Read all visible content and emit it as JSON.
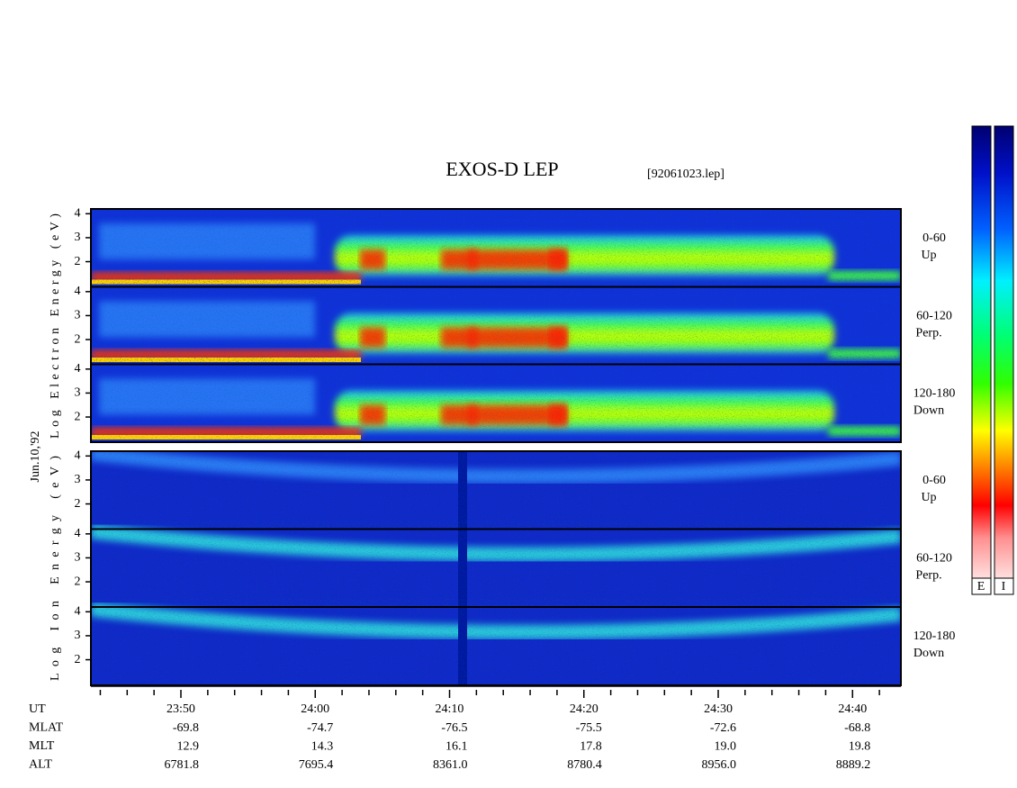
{
  "header": {
    "title": "EXOS-D LEP",
    "file": "[92061023.lep]"
  },
  "date": "Jun.10,'92",
  "ylim": [
    0.95,
    4.2
  ],
  "yticks": [
    2,
    3,
    4
  ],
  "electron": {
    "ylabel": "Log Electron Energy (eV)",
    "panels": [
      {
        "angle": "0-60",
        "dir": "Up"
      },
      {
        "angle": "60-120",
        "dir": "Perp."
      },
      {
        "angle": "120-180",
        "dir": "Down"
      }
    ]
  },
  "ion": {
    "ylabel": "Log Ion Energy (eV)",
    "panels": [
      {
        "angle": "0-60",
        "dir": "Up"
      },
      {
        "angle": "60-120",
        "dir": "Perp."
      },
      {
        "angle": "120-180",
        "dir": "Down"
      }
    ]
  },
  "xlim": [
    1423.3,
    1483.6
  ],
  "xticks": [
    {
      "value": 1430,
      "label": "23:50"
    },
    {
      "value": 1440,
      "label": "24:00"
    },
    {
      "value": 1450,
      "label": "24:10"
    },
    {
      "value": 1460,
      "label": "24:20"
    },
    {
      "value": 1470,
      "label": "24:30"
    },
    {
      "value": 1480,
      "label": "24:40"
    }
  ],
  "minor_xticks": [
    1424,
    1426,
    1428,
    1432,
    1434,
    1436,
    1438,
    1442,
    1444,
    1446,
    1448,
    1452,
    1454,
    1456,
    1458,
    1462,
    1464,
    1466,
    1468,
    1472,
    1474,
    1476,
    1478,
    1482
  ],
  "ephemeris": {
    "labels": [
      "UT",
      "MLAT",
      "MLT",
      "ALT"
    ],
    "rows": [
      [
        "-69.8",
        "-74.7",
        "-76.5",
        "-75.5",
        "-72.6",
        "-68.8"
      ],
      [
        "12.9",
        "14.3",
        "16.1",
        "17.8",
        "19.0",
        "19.8"
      ],
      [
        "6781.8",
        "7695.4",
        "8361.0",
        "8780.4",
        "8956.0",
        "8889.2"
      ]
    ]
  },
  "colorbar": {
    "labels": [
      "E",
      "I"
    ]
  }
}
